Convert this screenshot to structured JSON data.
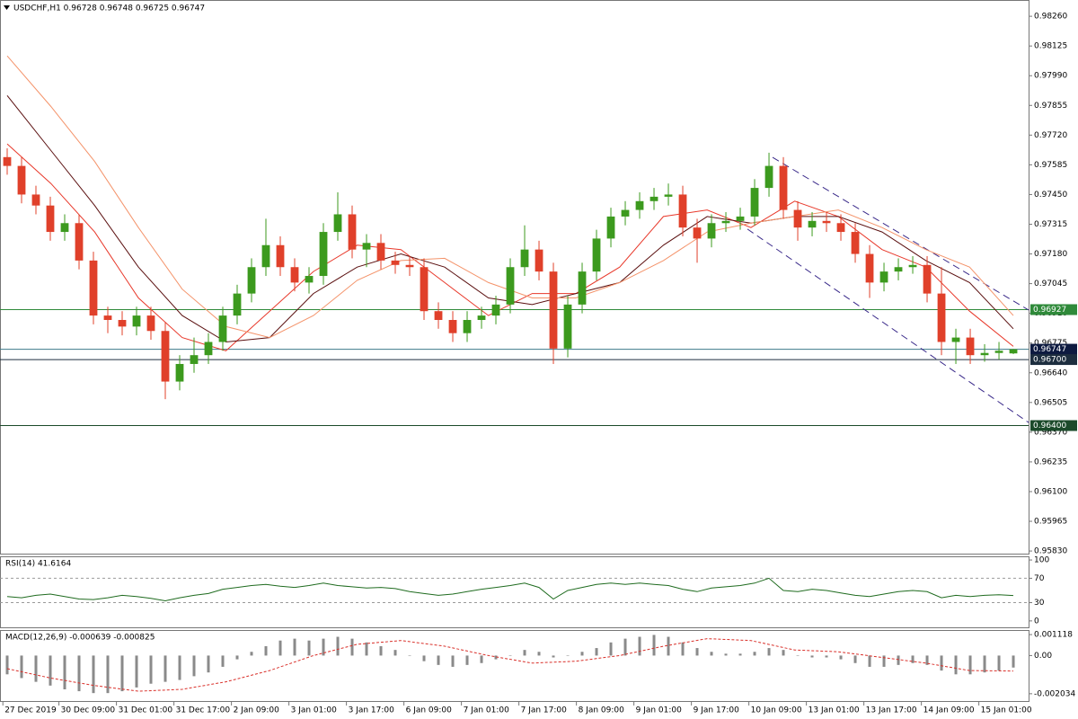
{
  "chart_data": [
    {
      "type": "candlestick",
      "title": "USDCHF,H1  0.96728 0.96748 0.96725 0.96747",
      "up_color": "#3c9a1e",
      "down_color": "#e0402a",
      "xlim": [
        -0.5,
        71.06
      ],
      "ylim": [
        0.95814,
        0.98334
      ],
      "xticks": [
        {
          "value": -0.3,
          "label": "27 Dec 2019"
        },
        {
          "value": 3.6,
          "label": "30 Dec 09:00"
        },
        {
          "value": 7.6,
          "label": "31 Dec 01:00"
        },
        {
          "value": 11.6,
          "label": "31 Dec 17:00"
        },
        {
          "value": 15.6,
          "label": "2 Jan 09:00"
        },
        {
          "value": 19.6,
          "label": "3 Jan 01:00"
        },
        {
          "value": 23.6,
          "label": "3 Jan 17:00"
        },
        {
          "value": 27.6,
          "label": "6 Jan 09:00"
        },
        {
          "value": 31.6,
          "label": "7 Jan 01:00"
        },
        {
          "value": 35.6,
          "label": "7 Jan 17:00"
        },
        {
          "value": 39.6,
          "label": "8 Jan 09:00"
        },
        {
          "value": 43.6,
          "label": "9 Jan 01:00"
        },
        {
          "value": 47.6,
          "label": "9 Jan 17:00"
        },
        {
          "value": 51.6,
          "label": "10 Jan 09:00"
        },
        {
          "value": 55.6,
          "label": "13 Jan 01:00"
        },
        {
          "value": 59.6,
          "label": "13 Jan 17:00"
        },
        {
          "value": 63.6,
          "label": "14 Jan 09:00"
        },
        {
          "value": 67.6,
          "label": "15 Jan 01:00"
        }
      ],
      "yticks": [
        {
          "value": 0.9826,
          "label": "0.98260"
        },
        {
          "value": 0.98125,
          "label": "0.98125"
        },
        {
          "value": 0.9799,
          "label": "0.97990"
        },
        {
          "value": 0.97855,
          "label": "0.97855"
        },
        {
          "value": 0.9772,
          "label": "0.97720"
        },
        {
          "value": 0.97585,
          "label": "0.97585"
        },
        {
          "value": 0.9745,
          "label": "0.97450"
        },
        {
          "value": 0.97315,
          "label": "0.97315"
        },
        {
          "value": 0.9718,
          "label": "0.97180"
        },
        {
          "value": 0.97045,
          "label": "0.97045"
        },
        {
          "value": 0.9691,
          "label": "0.96910"
        },
        {
          "value": 0.96775,
          "label": "0.96775"
        },
        {
          "value": 0.9664,
          "label": "0.96640"
        },
        {
          "value": 0.96505,
          "label": "0.96505"
        },
        {
          "value": 0.9637,
          "label": "0.96370"
        },
        {
          "value": 0.96235,
          "label": "0.96235"
        },
        {
          "value": 0.961,
          "label": "0.96100"
        },
        {
          "value": 0.95965,
          "label": "0.95965"
        },
        {
          "value": 0.9583,
          "label": "0.95830"
        }
      ],
      "open": [
        0.9762,
        0.9758,
        0.9745,
        0.974,
        0.9728,
        0.9732,
        0.9715,
        0.969,
        0.9688,
        0.9685,
        0.969,
        0.9683,
        0.966,
        0.9668,
        0.9672,
        0.9678,
        0.969,
        0.97,
        0.9712,
        0.9722,
        0.9712,
        0.9705,
        0.9708,
        0.9728,
        0.9736,
        0.972,
        0.9723,
        0.9715,
        0.9713,
        0.9712,
        0.9692,
        0.9688,
        0.9682,
        0.9688,
        0.969,
        0.9695,
        0.9712,
        0.972,
        0.971,
        0.9675,
        0.9695,
        0.971,
        0.9725,
        0.9735,
        0.9738,
        0.9742,
        0.9744,
        0.9745,
        0.973,
        0.9725,
        0.9732,
        0.9733,
        0.9735,
        0.9748,
        0.9758,
        0.9738,
        0.973,
        0.9733,
        0.9732,
        0.9728,
        0.9718,
        0.9705,
        0.971,
        0.9712,
        0.9713,
        0.97,
        0.9678,
        0.968,
        0.9672,
        0.9673,
        0.96728
      ],
      "high": [
        0.9766,
        0.9762,
        0.9749,
        0.9744,
        0.9736,
        0.9736,
        0.9719,
        0.9694,
        0.9692,
        0.9694,
        0.9694,
        0.9687,
        0.9672,
        0.968,
        0.9682,
        0.9694,
        0.9704,
        0.9716,
        0.9734,
        0.9726,
        0.9716,
        0.9712,
        0.9732,
        0.9746,
        0.974,
        0.9727,
        0.9727,
        0.9719,
        0.9717,
        0.9716,
        0.9696,
        0.9692,
        0.9692,
        0.9694,
        0.9699,
        0.9716,
        0.9731,
        0.9724,
        0.9714,
        0.9699,
        0.9714,
        0.9729,
        0.9739,
        0.9742,
        0.9746,
        0.9748,
        0.975,
        0.9749,
        0.9734,
        0.9736,
        0.9737,
        0.9739,
        0.9752,
        0.9764,
        0.9762,
        0.9742,
        0.9737,
        0.9737,
        0.9736,
        0.9732,
        0.9722,
        0.9714,
        0.9716,
        0.9717,
        0.9717,
        0.9712,
        0.9684,
        0.9684,
        0.9677,
        0.9678,
        0.96748
      ],
      "low": [
        0.9754,
        0.9741,
        0.9736,
        0.9724,
        0.9724,
        0.9711,
        0.9686,
        0.9682,
        0.9681,
        0.9681,
        0.9679,
        0.9652,
        0.9656,
        0.9664,
        0.9668,
        0.9674,
        0.9686,
        0.9696,
        0.9708,
        0.9708,
        0.9701,
        0.97,
        0.9704,
        0.9724,
        0.9716,
        0.9712,
        0.9711,
        0.9709,
        0.9708,
        0.9688,
        0.9684,
        0.9678,
        0.9678,
        0.9684,
        0.9686,
        0.9691,
        0.9708,
        0.9706,
        0.9668,
        0.9671,
        0.9691,
        0.9706,
        0.9721,
        0.9731,
        0.9734,
        0.9738,
        0.974,
        0.9726,
        0.9714,
        0.9721,
        0.9728,
        0.9729,
        0.9731,
        0.9744,
        0.9734,
        0.9724,
        0.9726,
        0.9728,
        0.9724,
        0.9714,
        0.9698,
        0.9701,
        0.9706,
        0.9709,
        0.9696,
        0.9672,
        0.9668,
        0.9668,
        0.9669,
        0.967,
        0.96725
      ],
      "close": [
        0.9758,
        0.9745,
        0.974,
        0.9728,
        0.9732,
        0.9715,
        0.969,
        0.9688,
        0.9685,
        0.969,
        0.9683,
        0.966,
        0.9668,
        0.9672,
        0.9678,
        0.969,
        0.97,
        0.9712,
        0.9722,
        0.9712,
        0.9705,
        0.9708,
        0.9728,
        0.9736,
        0.972,
        0.9723,
        0.9715,
        0.9713,
        0.9712,
        0.9692,
        0.9688,
        0.9682,
        0.9688,
        0.969,
        0.9695,
        0.9712,
        0.972,
        0.971,
        0.9675,
        0.9695,
        0.971,
        0.9725,
        0.9735,
        0.9738,
        0.9742,
        0.9744,
        0.9745,
        0.973,
        0.9725,
        0.9732,
        0.9733,
        0.9735,
        0.9748,
        0.9758,
        0.9738,
        0.973,
        0.9733,
        0.9732,
        0.9728,
        0.9718,
        0.9705,
        0.971,
        0.9712,
        0.9713,
        0.97,
        0.9678,
        0.968,
        0.9672,
        0.9673,
        0.9674,
        0.96747
      ],
      "series": [
        {
          "color": "#e8382a",
          "values": [
            0.9768,
            0.975,
            0.9728,
            0.9698,
            0.968,
            0.9674,
            0.9692,
            0.971,
            0.9722,
            0.972,
            0.9705,
            0.969,
            0.97,
            0.97,
            0.9712,
            0.9735,
            0.9738,
            0.973,
            0.9742,
            0.9735,
            0.972,
            0.9712,
            0.9692,
            0.9676
          ]
        },
        {
          "color": "#5a0f0f",
          "values": [
            0.979,
            0.9765,
            0.974,
            0.9712,
            0.969,
            0.9678,
            0.968,
            0.97,
            0.9712,
            0.9718,
            0.9712,
            0.9698,
            0.9695,
            0.97,
            0.9705,
            0.9722,
            0.9735,
            0.9732,
            0.9735,
            0.9735,
            0.9728,
            0.9715,
            0.9705,
            0.9684
          ]
        },
        {
          "color": "#f4936a",
          "values": [
            0.9808,
            0.9785,
            0.976,
            0.973,
            0.9702,
            0.9685,
            0.968,
            0.969,
            0.9706,
            0.9715,
            0.9716,
            0.9705,
            0.9698,
            0.9698,
            0.9705,
            0.9715,
            0.9728,
            0.9732,
            0.9735,
            0.9738,
            0.973,
            0.972,
            0.9712,
            0.969
          ]
        }
      ],
      "levels": [
        {
          "value": 0.96927,
          "label": "0.96927",
          "color": "#2f8a3a",
          "line_color": "#2f8a3a"
        },
        {
          "value": 0.96747,
          "label": "0.96747",
          "color": "#0d1a40",
          "line_color": "#3d7a8a"
        },
        {
          "value": 0.967,
          "label": "0.96700",
          "color": "#1d2e3f",
          "line_color": "#1d2e3f"
        },
        {
          "value": 0.964,
          "label": "0.96400",
          "color": "#1b4a2a",
          "line_color": "#1b4a2a"
        }
      ],
      "channel": {
        "color": "#3a2a8a",
        "lines": [
          {
            "x": [
              53.25,
              71.06
            ],
            "values": [
              0.97619,
              0.96925
            ]
          },
          {
            "x": [
              51.5,
              71.06
            ],
            "values": [
              0.97293,
              0.96414
            ]
          }
        ]
      }
    },
    {
      "type": "line",
      "title": "RSI(14) 41.6164",
      "color": "#1f6b1f",
      "ylim": [
        -12,
        106
      ],
      "yticks": [
        0,
        30,
        70,
        100
      ],
      "levels": [
        30,
        70
      ],
      "values": [
        40,
        38,
        42,
        44,
        40,
        36,
        35,
        38,
        42,
        40,
        37,
        33,
        38,
        42,
        45,
        52,
        55,
        58,
        60,
        57,
        55,
        58,
        62,
        58,
        56,
        54,
        55,
        53,
        48,
        45,
        42,
        44,
        48,
        52,
        55,
        58,
        62,
        55,
        36,
        50,
        55,
        60,
        62,
        60,
        62,
        60,
        58,
        52,
        48,
        54,
        56,
        58,
        62,
        70,
        50,
        48,
        52,
        50,
        46,
        42,
        40,
        44,
        48,
        50,
        48,
        38,
        42,
        40,
        42,
        43,
        41.6164
      ]
    },
    {
      "type": "bar",
      "title": "MACD(12,26,9) -0.000639 -0.000825",
      "color": "#8a8a8a",
      "signal_color": "#d9302a",
      "ylim": [
        -0.002423,
        0.001361
      ],
      "yticks": [
        {
          "value": 0.001118,
          "label": "0.001118"
        },
        {
          "value": 0,
          "label": "0.00"
        },
        {
          "value": -0.002034,
          "label": "-0.002034"
        }
      ],
      "values": [
        -0.001,
        -0.0012,
        -0.0014,
        -0.0016,
        -0.0018,
        -0.0019,
        -0.002,
        -0.002,
        -0.0019,
        -0.0017,
        -0.0015,
        -0.0014,
        -0.0013,
        -0.0011,
        -0.0009,
        -0.0006,
        -0.0002,
        0.0002,
        0.0005,
        0.0008,
        0.0009,
        0.0008,
        0.0009,
        0.001,
        0.0009,
        0.0007,
        0.0005,
        0.0003,
        0,
        -0.0003,
        -0.0005,
        -0.0006,
        -0.0005,
        -0.0004,
        -0.0002,
        0,
        0.0003,
        0.0002,
        -0.0001,
        0,
        0.0002,
        0.0004,
        0.0007,
        0.0009,
        0.001,
        0.0011,
        0.001,
        0.0007,
        0.0004,
        0.0002,
        0.0001,
        0.0001,
        0.0002,
        0.0004,
        0.0003,
        0,
        -0.0001,
        -0.0001,
        -0.0002,
        -0.0004,
        -0.0006,
        -0.0006,
        -0.0005,
        -0.0004,
        -0.0005,
        -0.0008,
        -0.001,
        -0.001,
        -0.0009,
        -0.0008,
        -0.000639
      ],
      "signal": [
        -0.0007,
        -0.0012,
        -0.0016,
        -0.0019,
        -0.0018,
        -0.0014,
        -0.0008,
        0,
        0.0006,
        0.0008,
        0.0005,
        0,
        -0.0004,
        -0.0003,
        0,
        0.0005,
        0.0009,
        0.0008,
        0.0003,
        0.0002,
        -0.0001,
        -0.0004,
        -0.0008,
        -0.000825
      ]
    }
  ]
}
